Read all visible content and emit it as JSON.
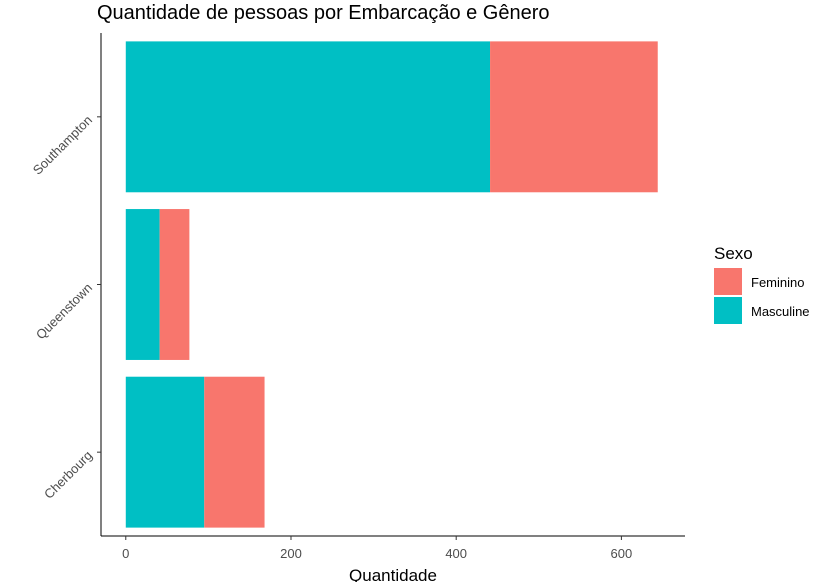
{
  "chart_data": {
    "type": "bar",
    "orientation": "horizontal",
    "stacked": true,
    "title": "Quantidade de pessoas por Embarcação e Gênero",
    "xlabel": "Quantidade",
    "ylabel": "",
    "categories": [
      "Cherbourg",
      "Queenstown",
      "Southampton"
    ],
    "series": [
      {
        "name": "Masculine",
        "values": [
          95,
          41,
          441
        ],
        "color": "#00BFC4"
      },
      {
        "name": "Feminino",
        "values": [
          73,
          36,
          203
        ],
        "color": "#F8766D"
      }
    ],
    "xlim": [
      -30,
      677
    ],
    "xticks": [
      0,
      200,
      400,
      600
    ],
    "grid": false,
    "legend": {
      "title": "Sexo",
      "position": "right",
      "entries": [
        {
          "label": "Feminino",
          "color": "#F8766D"
        },
        {
          "label": "Masculine",
          "color": "#00BFC4"
        }
      ]
    }
  }
}
